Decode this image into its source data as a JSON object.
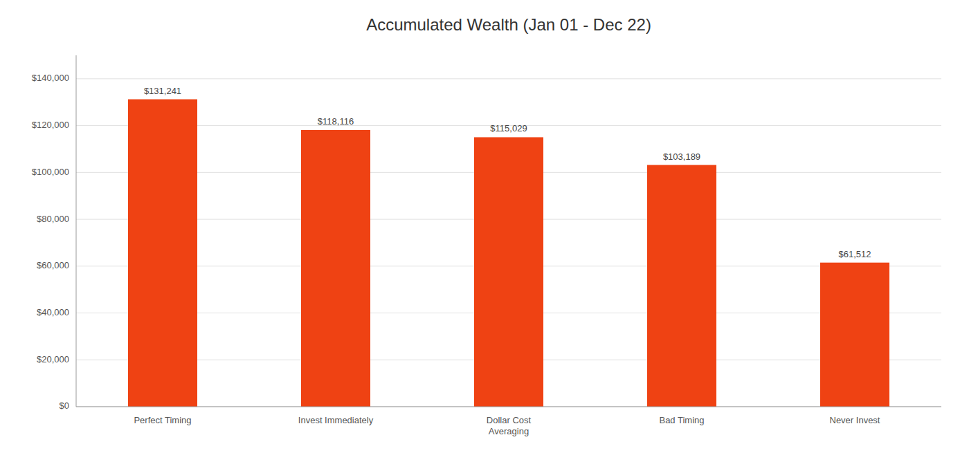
{
  "chart_data": {
    "type": "bar",
    "title": "Accumulated Wealth (Jan 01 - Dec 22)",
    "categories": [
      "Perfect Timing",
      "Invest Immediately",
      "Dollar Cost\nAveraging",
      "Bad Timing",
      "Never Invest"
    ],
    "values": [
      131241,
      118116,
      115029,
      103189,
      61512
    ],
    "value_labels": [
      "$131,241",
      "$118,116",
      "$115,029",
      "$103,189",
      "$61,512"
    ],
    "color": "#EF4213",
    "ylim": [
      0,
      150000
    ],
    "yticks": [
      {
        "value": 0,
        "label": "$0"
      },
      {
        "value": 20000,
        "label": "$20,000"
      },
      {
        "value": 40000,
        "label": "$40,000"
      },
      {
        "value": 60000,
        "label": "$60,000"
      },
      {
        "value": 80000,
        "label": "$80,000"
      },
      {
        "value": 100000,
        "label": "$100,000"
      },
      {
        "value": 120000,
        "label": "$120,000"
      },
      {
        "value": 140000,
        "label": "$140,000"
      }
    ],
    "grid": true,
    "data_labels": true
  }
}
